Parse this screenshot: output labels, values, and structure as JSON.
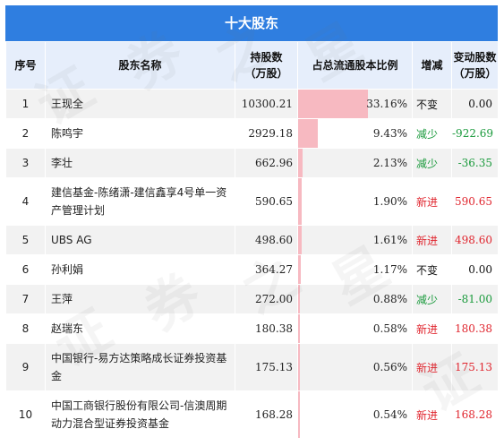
{
  "title": "十大股东",
  "headers": {
    "idx": "序号",
    "name": "股东名称",
    "shares_line1": "持股数",
    "shares_line2": "（万股）",
    "ratio": "占总流通股本比例",
    "change": "增减",
    "delta_line1": "变动股数",
    "delta_line2": "（万股）"
  },
  "rows": [
    {
      "idx": "1",
      "name": "王现全",
      "shares": "10300.21",
      "ratio": "33.16%",
      "ratio_value": 33.16,
      "change": "不变",
      "delta": "0.00",
      "trend": "same"
    },
    {
      "idx": "2",
      "name": "陈鸣宇",
      "shares": "2929.18",
      "ratio": "9.43%",
      "ratio_value": 9.43,
      "change": "减少",
      "delta": "-922.69",
      "trend": "down"
    },
    {
      "idx": "3",
      "name": "李壮",
      "shares": "662.96",
      "ratio": "2.13%",
      "ratio_value": 2.13,
      "change": "减少",
      "delta": "-36.35",
      "trend": "down"
    },
    {
      "idx": "4",
      "name": "建信基金-陈绪潇-建信鑫享4号单一资产管理计划",
      "shares": "590.65",
      "ratio": "1.90%",
      "ratio_value": 1.9,
      "change": "新进",
      "delta": "590.65",
      "trend": "up"
    },
    {
      "idx": "5",
      "name": "UBS AG",
      "shares": "498.60",
      "ratio": "1.61%",
      "ratio_value": 1.61,
      "change": "新进",
      "delta": "498.60",
      "trend": "up"
    },
    {
      "idx": "6",
      "name": "孙利娟",
      "shares": "364.27",
      "ratio": "1.17%",
      "ratio_value": 1.17,
      "change": "不变",
      "delta": "0.00",
      "trend": "same"
    },
    {
      "idx": "7",
      "name": "王萍",
      "shares": "272.00",
      "ratio": "0.88%",
      "ratio_value": 0.88,
      "change": "减少",
      "delta": "-81.00",
      "trend": "down"
    },
    {
      "idx": "8",
      "name": "赵瑞东",
      "shares": "180.38",
      "ratio": "0.58%",
      "ratio_value": 0.58,
      "change": "新进",
      "delta": "180.38",
      "trend": "up"
    },
    {
      "idx": "9",
      "name": "中国银行-易方达策略成长证券投资基金",
      "shares": "175.13",
      "ratio": "0.56%",
      "ratio_value": 0.56,
      "change": "新进",
      "delta": "175.13",
      "trend": "up"
    },
    {
      "idx": "10",
      "name": "中国工商银行股份有限公司-信澳周期动力混合型证券投资基金",
      "shares": "168.28",
      "ratio": "0.54%",
      "ratio_value": 0.54,
      "change": "新进",
      "delta": "168.28",
      "trend": "up"
    }
  ],
  "colors": {
    "header_bg": "#2f7ee0",
    "bar": "#f7b9c1",
    "up": "#e0262f",
    "down": "#1a9a3c"
  }
}
